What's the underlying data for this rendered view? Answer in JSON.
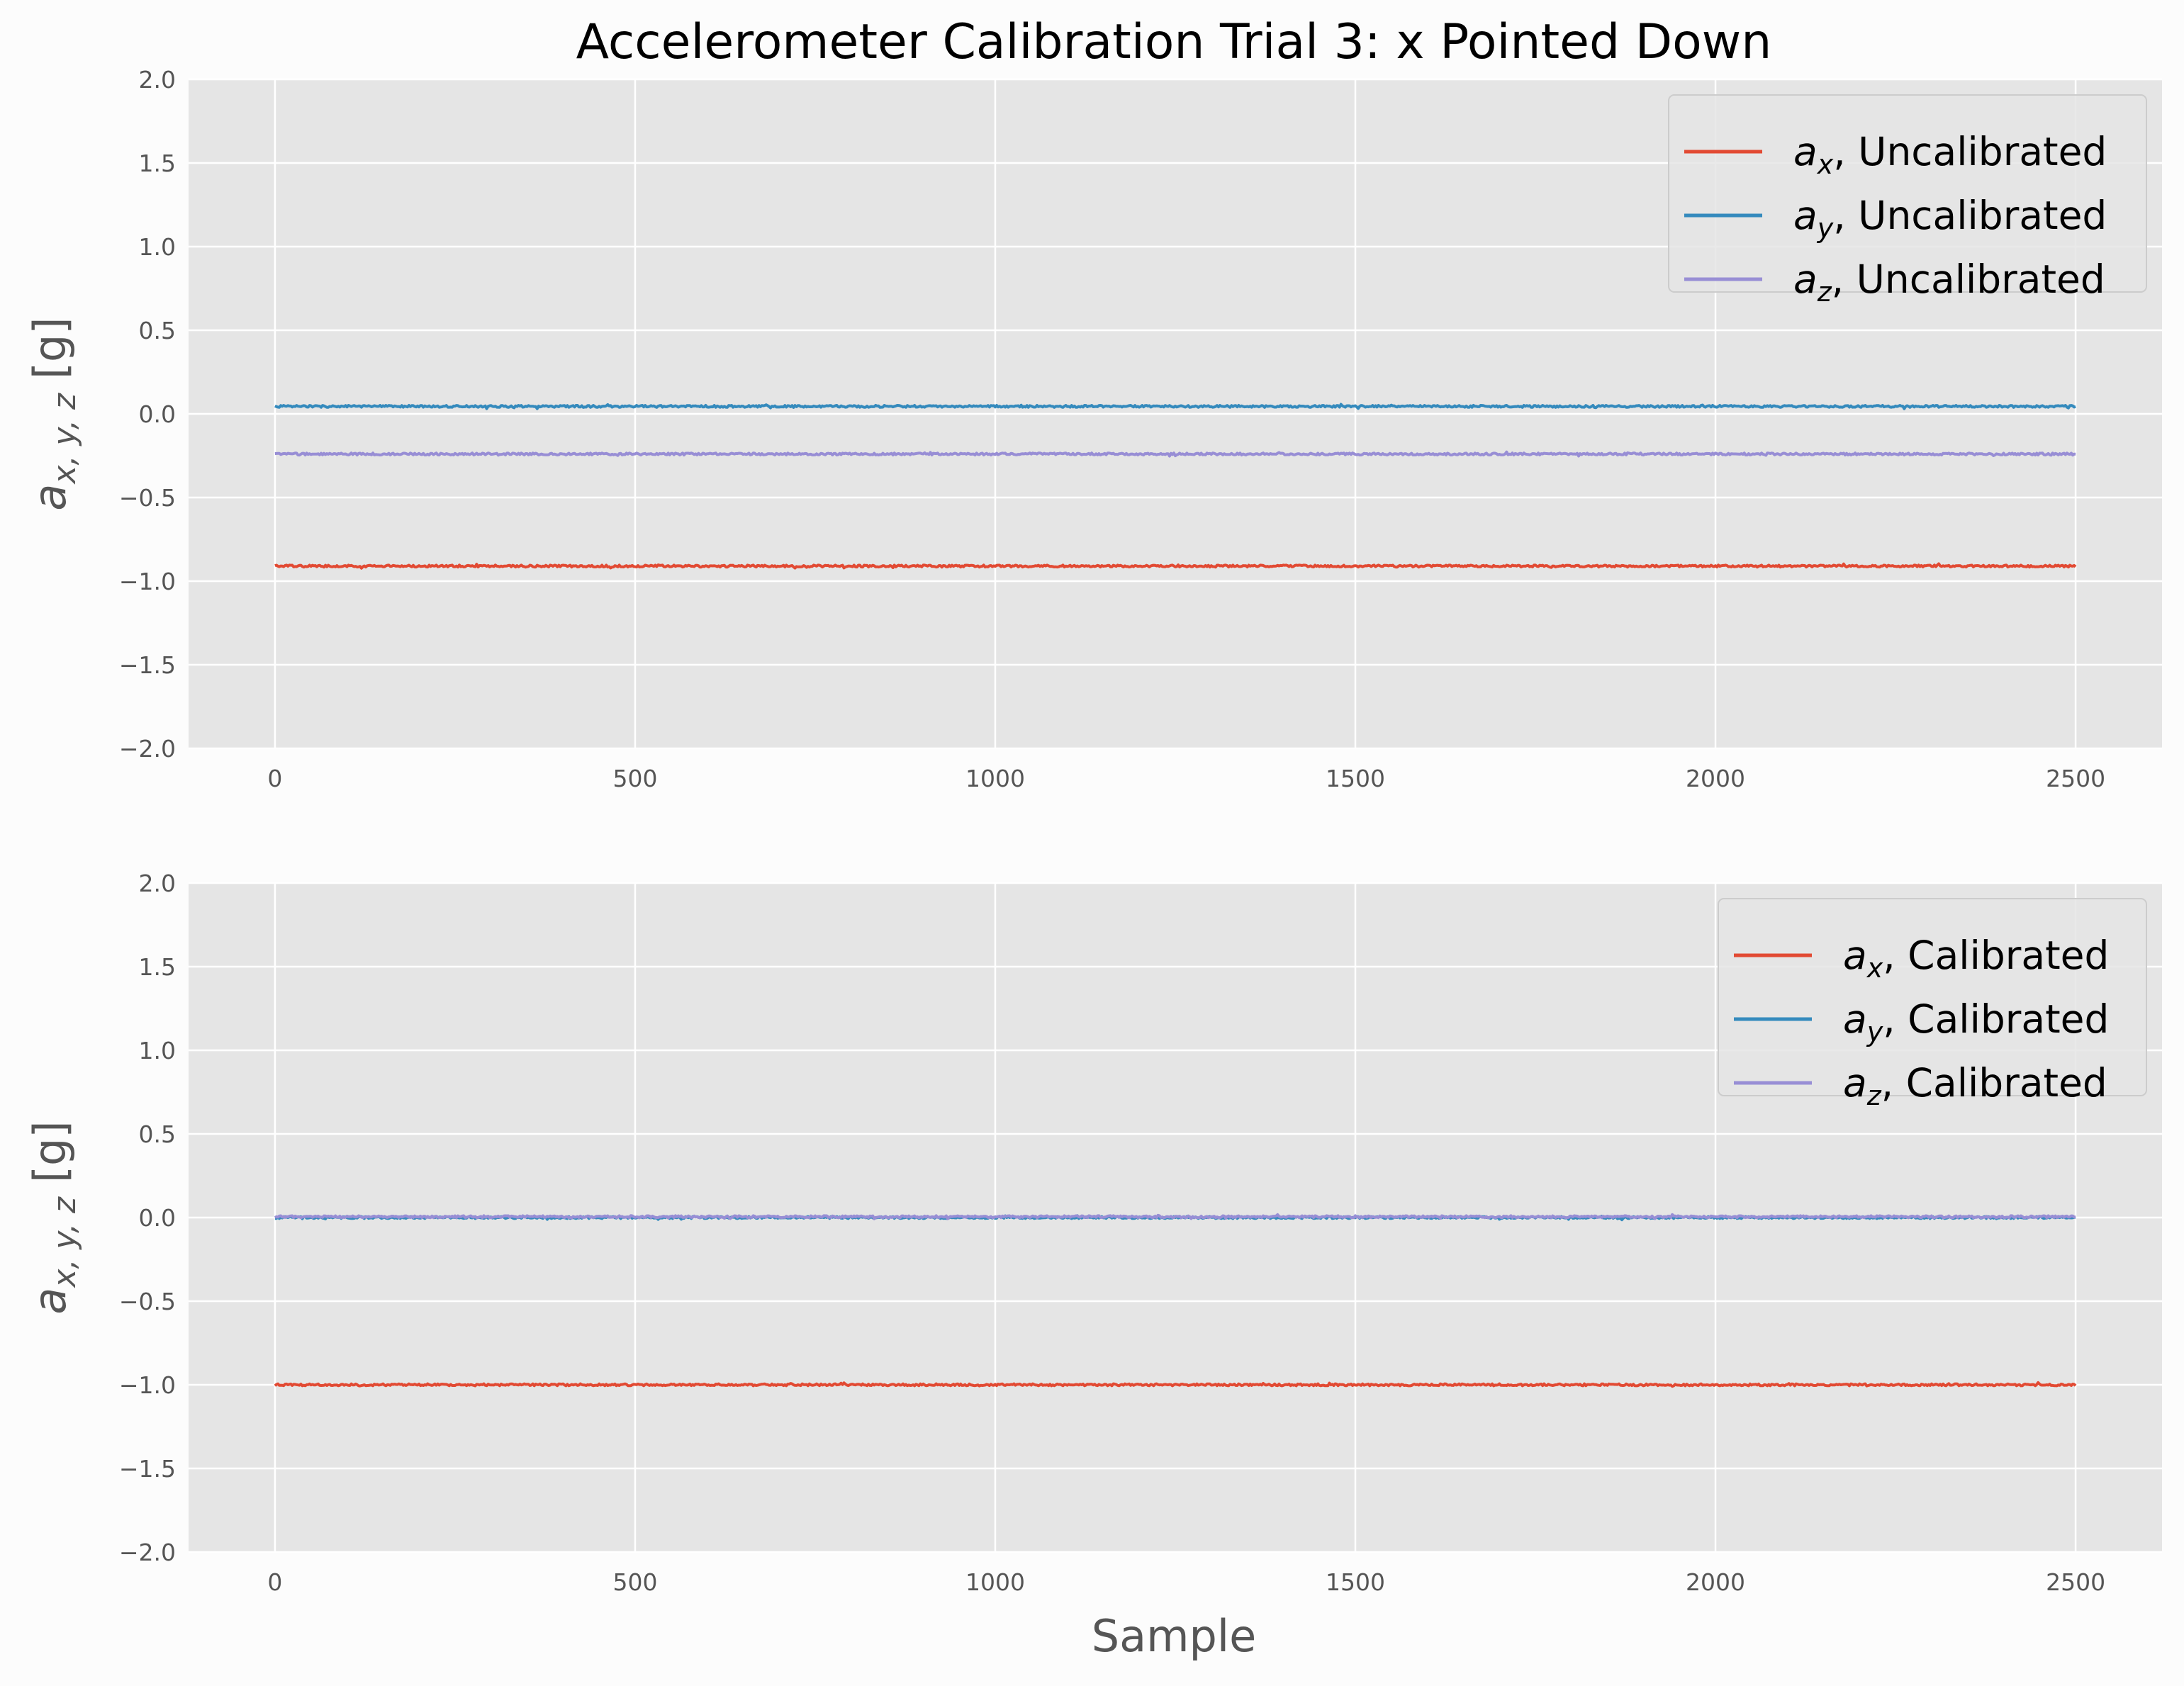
{
  "title": "Accelerometer Calibration Trial 3: x Pointed Down",
  "xlabel": "Sample",
  "ylabel_base": "a",
  "ylabel_sub": "x, y, z",
  "ylabel_unit": " [g]",
  "colors": {
    "plot_bg": "#e5e5e5",
    "grid": "#ffffff",
    "figure_bg": "#fcfcfc",
    "ax": "#e24a33",
    "ay": "#348abd",
    "az": "#988ed5"
  },
  "chart_data": [
    {
      "type": "line",
      "xlim": [
        -120,
        2620
      ],
      "ylim": [
        -2.0,
        2.0
      ],
      "x_range": [
        0,
        2500
      ],
      "xticks": [
        0,
        500,
        1000,
        1500,
        2000,
        2500
      ],
      "yticks": [
        2.0,
        1.5,
        1.0,
        0.5,
        0.0,
        -0.5,
        -1.0,
        -1.5,
        -2.0
      ],
      "ytick_labels": [
        "2.0",
        "1.5",
        "1.0",
        "0.5",
        "0.0",
        "−0.5",
        "−1.0",
        "−1.5",
        "−2.0"
      ],
      "grid": true,
      "legend_position": "top-right",
      "series": [
        {
          "name_base": "a",
          "name_sub": "x",
          "name_rest": ", Uncalibrated",
          "color_key": "ax",
          "mean": -0.91,
          "noise": 0.006
        },
        {
          "name_base": "a",
          "name_sub": "y",
          "name_rest": ", Uncalibrated",
          "color_key": "ay",
          "mean": 0.045,
          "noise": 0.006
        },
        {
          "name_base": "a",
          "name_sub": "z",
          "name_rest": ", Uncalibrated",
          "color_key": "az",
          "mean": -0.24,
          "noise": 0.006
        }
      ]
    },
    {
      "type": "line",
      "xlim": [
        -120,
        2620
      ],
      "ylim": [
        -2.0,
        2.0
      ],
      "x_range": [
        0,
        2500
      ],
      "xticks": [
        0,
        500,
        1000,
        1500,
        2000,
        2500
      ],
      "yticks": [
        2.0,
        1.5,
        1.0,
        0.5,
        0.0,
        -0.5,
        -1.0,
        -1.5,
        -2.0
      ],
      "ytick_labels": [
        "2.0",
        "1.5",
        "1.0",
        "0.5",
        "0.0",
        "−0.5",
        "−1.0",
        "−1.5",
        "−2.0"
      ],
      "grid": true,
      "legend_position": "top-right",
      "series": [
        {
          "name_base": "a",
          "name_sub": "x",
          "name_rest": ", Calibrated",
          "color_key": "ax",
          "mean": -1.0,
          "noise": 0.006
        },
        {
          "name_base": "a",
          "name_sub": "y",
          "name_rest": ", Calibrated",
          "color_key": "ay",
          "mean": 0.0,
          "noise": 0.006
        },
        {
          "name_base": "a",
          "name_sub": "z",
          "name_rest": ", Calibrated",
          "color_key": "az",
          "mean": 0.005,
          "noise": 0.006
        }
      ]
    }
  ]
}
